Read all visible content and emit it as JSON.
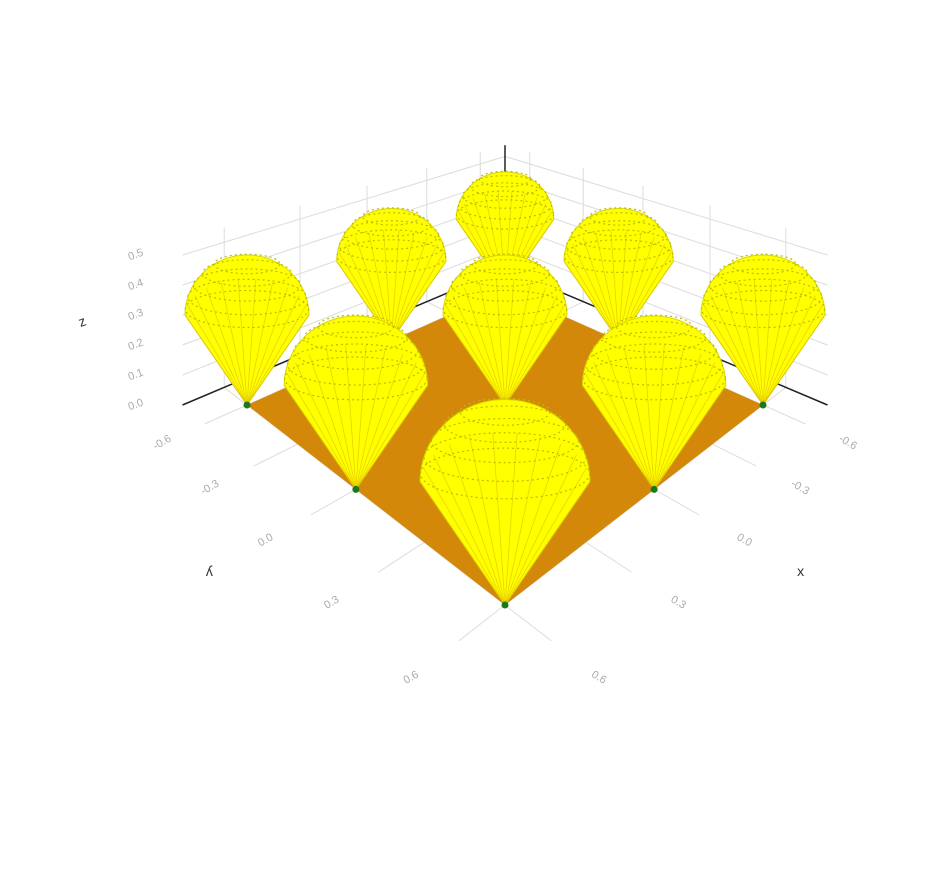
{
  "chart_data": {
    "type": "cone3d",
    "x": [
      -0.6,
      -0.6,
      -0.6,
      0,
      0,
      0,
      0.6,
      0.6,
      0.6
    ],
    "y": [
      -0.6,
      0,
      0.6,
      -0.6,
      0,
      0.6,
      -0.6,
      0,
      0.6
    ],
    "z": [
      0.5,
      0.5,
      0.5,
      0.5,
      0.5,
      0.5,
      0.5,
      0.5,
      0.5
    ],
    "color": "#ffff00",
    "apex_color": "#1a7a1a",
    "floor": {
      "x": [
        -0.6,
        0.6
      ],
      "y": [
        -0.6,
        0.6
      ],
      "color": "#d4880a"
    },
    "xaxis_title": "x",
    "yaxis_title": "y",
    "zaxis_title": "z",
    "xlim": [
      -0.75,
      0.75
    ],
    "ylim": [
      -0.75,
      0.75
    ],
    "zlim": [
      0,
      0.55
    ],
    "xticks": [
      -0.6,
      -0.3,
      {
        "value": 0,
        "label": "0.0"
      },
      0.3,
      0.6
    ],
    "yticks": [
      -0.6,
      -0.3,
      {
        "value": 0,
        "label": "0.0"
      },
      0.3,
      0.6
    ],
    "zticks": [
      {
        "value": 0,
        "label": "0.0"
      },
      0.1,
      0.2,
      0.3,
      0.4,
      0.5
    ],
    "grid": true
  }
}
